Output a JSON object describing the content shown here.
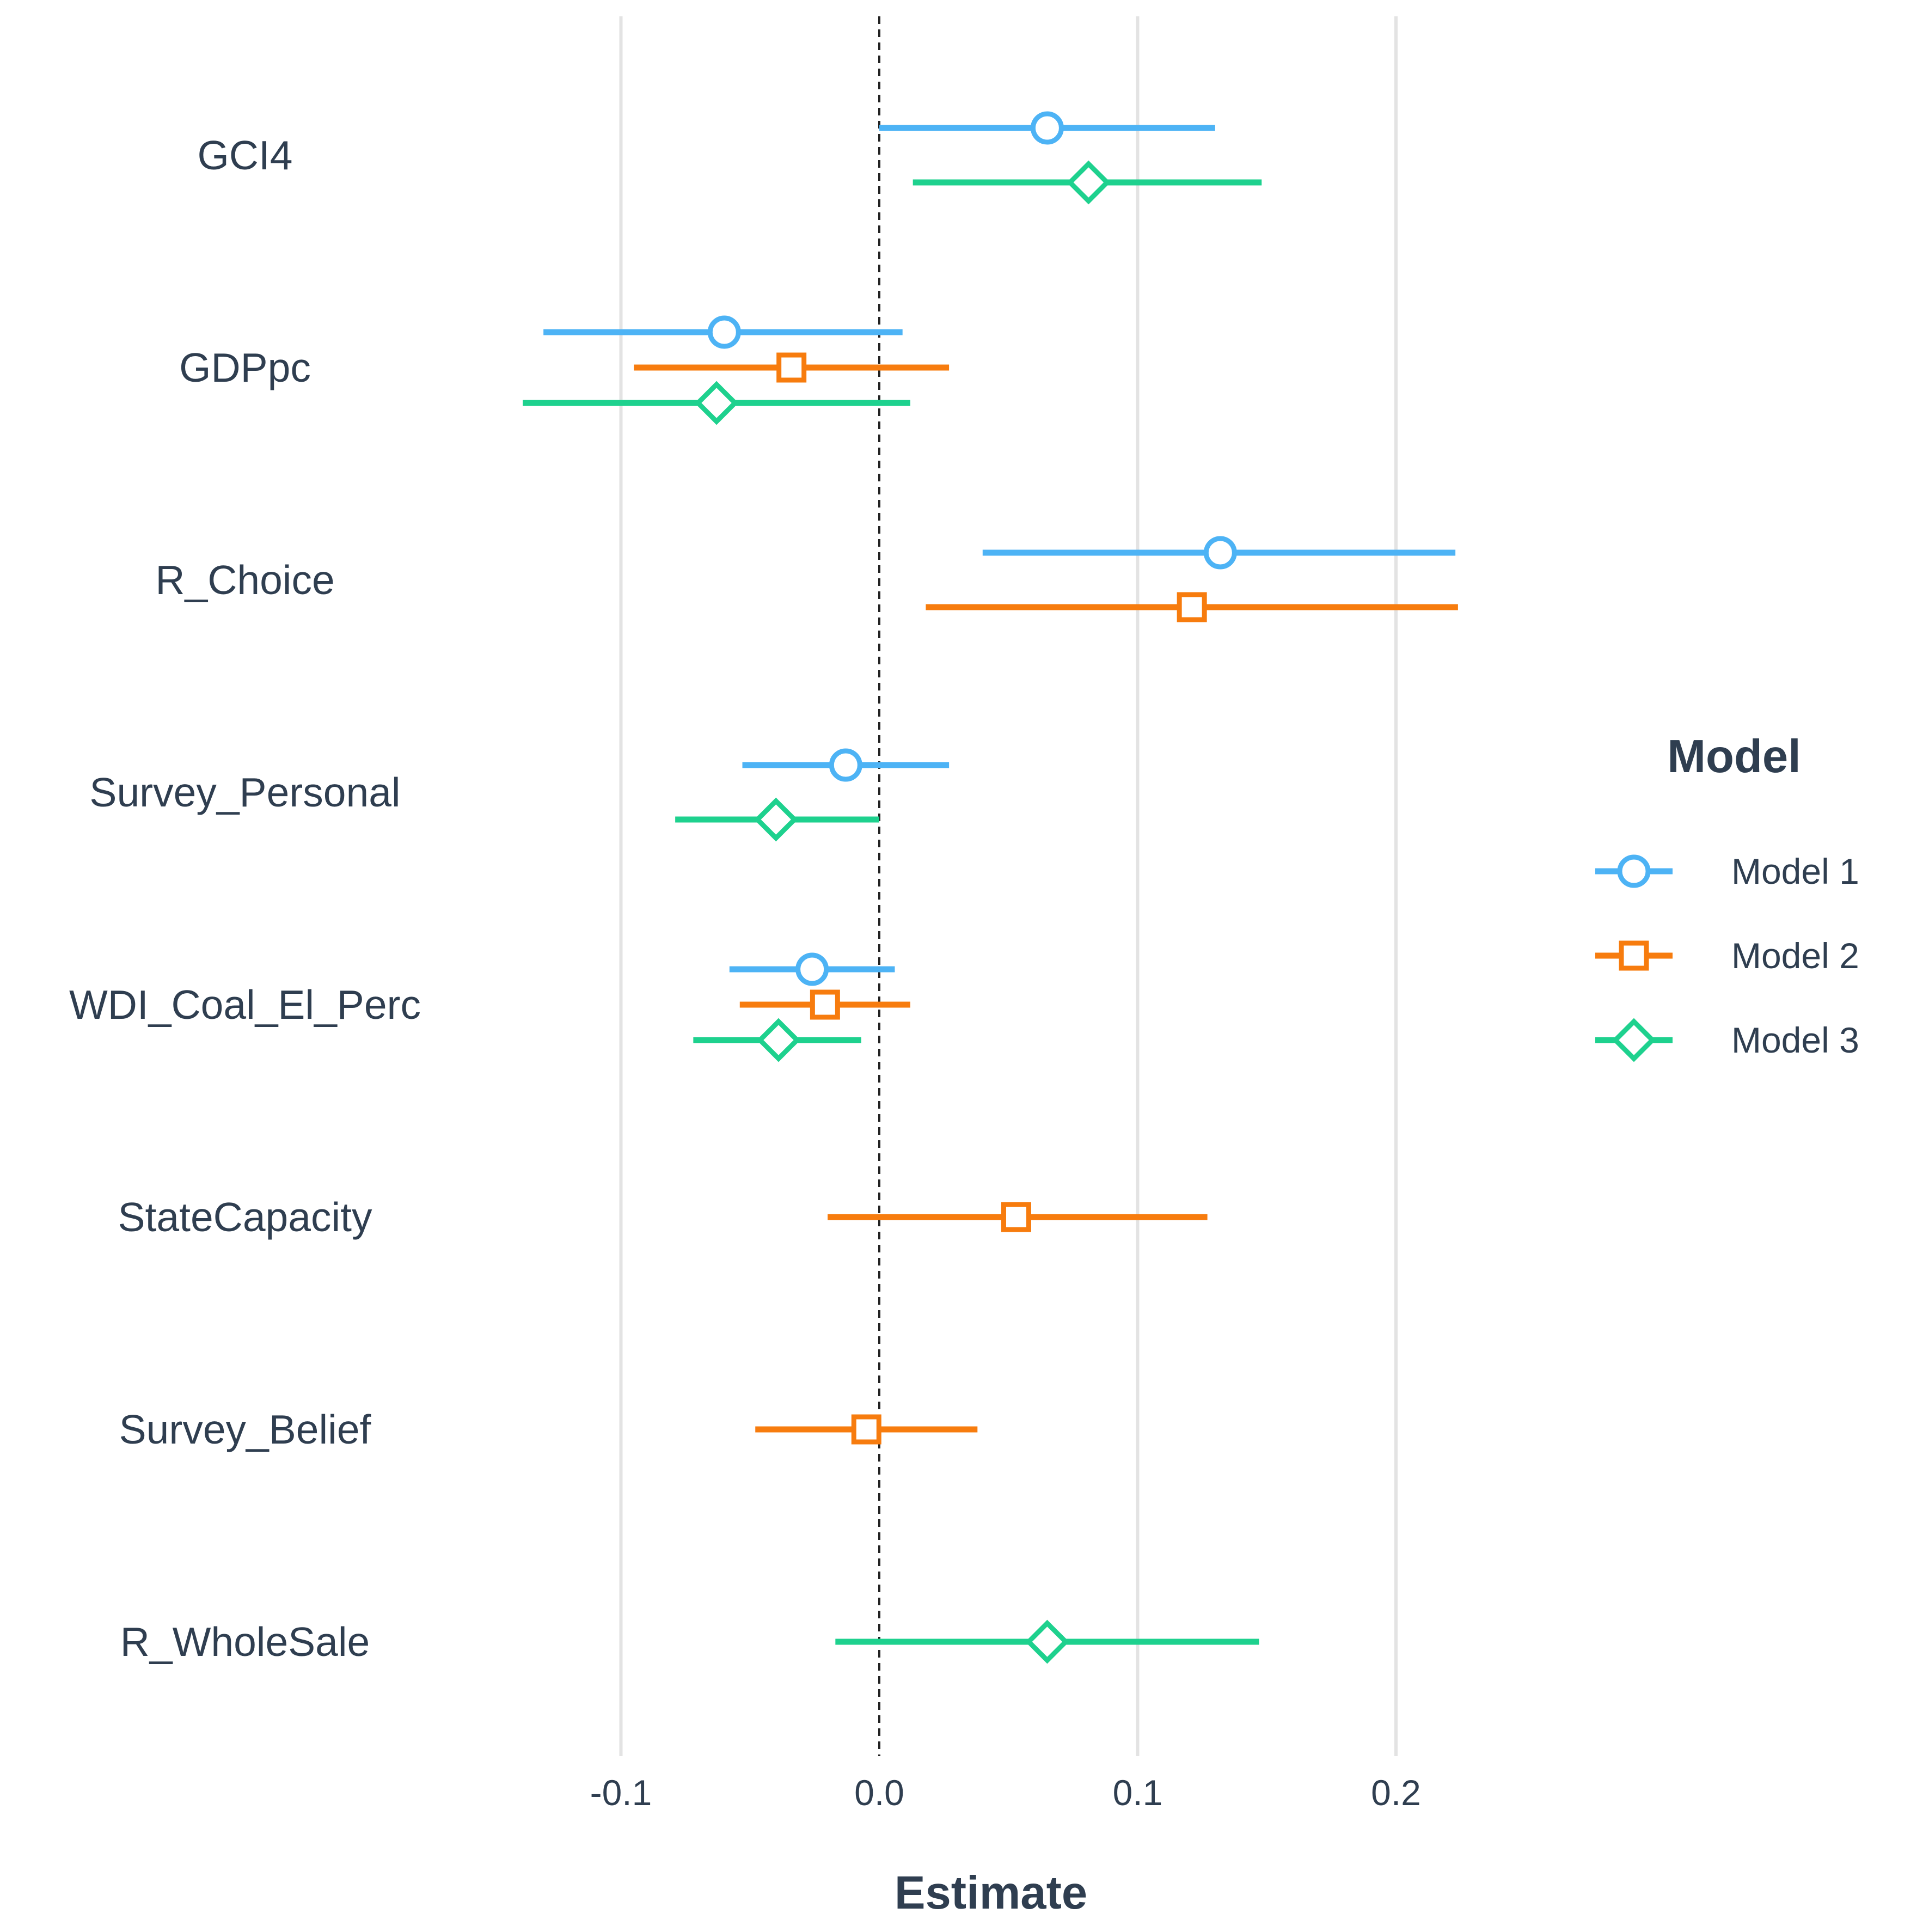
{
  "chart_data": {
    "type": "scatter",
    "subtype": "coefficient-plot",
    "xlabel": "Estimate",
    "xlim": [
      -0.175,
      0.215
    ],
    "xticks": [
      -0.1,
      0.0,
      0.1,
      0.2
    ],
    "xtick_labels": [
      "-0.1",
      "0.0",
      "0.1",
      "0.2"
    ],
    "grid": "vertical",
    "zero_line": "dashed",
    "categories": [
      "GCI4",
      "GDPpc",
      "R_Choice",
      "Survey_Personal",
      "WDI_Coal_El_Perc",
      "StateCapacity",
      "Survey_Belief",
      "R_WholeSale"
    ],
    "legend": {
      "title": "Model",
      "position": "right"
    },
    "series": [
      {
        "name": "Model 1",
        "color": "#4db3f5",
        "marker": "circle",
        "points": [
          {
            "category": "GCI4",
            "estimate": 0.065,
            "low": 0.0,
            "high": 0.13
          },
          {
            "category": "GDPpc",
            "estimate": -0.06,
            "low": -0.13,
            "high": 0.009
          },
          {
            "category": "R_Choice",
            "estimate": 0.132,
            "low": 0.04,
            "high": 0.223
          },
          {
            "category": "Survey_Personal",
            "estimate": -0.013,
            "low": -0.053,
            "high": 0.027
          },
          {
            "category": "WDI_Coal_El_Perc",
            "estimate": -0.026,
            "low": -0.058,
            "high": 0.006
          }
        ]
      },
      {
        "name": "Model 2",
        "color": "#f77c0e",
        "marker": "square",
        "points": [
          {
            "category": "GDPpc",
            "estimate": -0.034,
            "low": -0.095,
            "high": 0.027
          },
          {
            "category": "R_Choice",
            "estimate": 0.121,
            "low": 0.018,
            "high": 0.224
          },
          {
            "category": "WDI_Coal_El_Perc",
            "estimate": -0.021,
            "low": -0.054,
            "high": 0.012
          },
          {
            "category": "StateCapacity",
            "estimate": 0.053,
            "low": -0.02,
            "high": 0.127
          },
          {
            "category": "Survey_Belief",
            "estimate": -0.005,
            "low": -0.048,
            "high": 0.038
          }
        ]
      },
      {
        "name": "Model 3",
        "color": "#1ed18e",
        "marker": "diamond",
        "points": [
          {
            "category": "GCI4",
            "estimate": 0.081,
            "low": 0.013,
            "high": 0.148
          },
          {
            "category": "GDPpc",
            "estimate": -0.063,
            "low": -0.138,
            "high": 0.012
          },
          {
            "category": "Survey_Personal",
            "estimate": -0.04,
            "low": -0.079,
            "high": 0.0
          },
          {
            "category": "WDI_Coal_El_Perc",
            "estimate": -0.039,
            "low": -0.072,
            "high": -0.007
          },
          {
            "category": "R_WholeSale",
            "estimate": 0.065,
            "low": -0.017,
            "high": 0.147
          }
        ]
      }
    ]
  }
}
